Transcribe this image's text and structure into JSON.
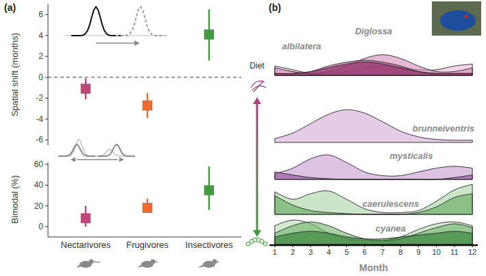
{
  "chart_data": [
    {
      "type": "dot_error",
      "panel": "(a)",
      "y_label": "Spatial shift (months)",
      "categories": [
        "Nectarivores",
        "Frugivores",
        "Insectivores"
      ],
      "values": [
        -1.1,
        -2.7,
        4.1
      ],
      "ci_low": [
        -2.1,
        -3.9,
        1.6
      ],
      "ci_high": [
        -0.1,
        -1.5,
        6.5
      ],
      "colors": [
        "#c2467a",
        "#f26b2e",
        "#3f9c3f"
      ],
      "marker": "square",
      "ylim": [
        -6.5,
        7
      ],
      "yticks": [
        -6,
        -4,
        -2,
        0,
        2,
        4,
        6
      ],
      "reference_line": 0
    },
    {
      "type": "dot_error",
      "y_label": "Bimodal (%)",
      "categories": [
        "Nectarivores",
        "Frugivores",
        "Insectivores"
      ],
      "values": [
        8,
        18,
        35
      ],
      "ci_low": [
        0,
        13,
        16
      ],
      "ci_high": [
        20,
        27,
        58
      ],
      "colors": [
        "#c2467a",
        "#f26b2e",
        "#3f9c3f"
      ],
      "marker": "square",
      "ylim": [
        -10,
        62
      ],
      "yticks": [
        0,
        20,
        40,
        60
      ]
    },
    {
      "type": "ridgeline",
      "panel": "(b)",
      "title": "Diglossa",
      "x_label": "Month",
      "annotation": "Diet",
      "x": [
        1,
        2,
        3,
        4,
        5,
        6,
        7,
        8,
        9,
        10,
        11,
        12
      ],
      "xlim": [
        0.7,
        12.3
      ],
      "xticks": [
        1,
        2,
        3,
        4,
        5,
        6,
        7,
        8,
        9,
        10,
        11,
        12
      ],
      "ylim": [
        0,
        1
      ],
      "groups": [
        {
          "name": "albilatera",
          "series": [
            {
              "color": "#e8b8d4",
              "values": [
                0.25,
                0.15,
                0.05,
                0.05,
                0.1,
                0.2,
                0.25,
                0.2,
                0.15,
                0.15,
                0.25,
                0.3
              ]
            },
            {
              "color": "#d48ab5",
              "values": [
                0.2,
                0.1,
                0.05,
                0.1,
                0.25,
                0.45,
                0.55,
                0.45,
                0.25,
                0.1,
                0.1,
                0.2
              ]
            },
            {
              "color": "#b0518a",
              "values": [
                0.05,
                0.05,
                0.1,
                0.25,
                0.35,
                0.4,
                0.35,
                0.25,
                0.1,
                0.05,
                0.05,
                0.05
              ]
            },
            {
              "color": "#8a2d66",
              "values": [
                0.05,
                0.05,
                0.1,
                0.2,
                0.3,
                0.35,
                0.3,
                0.2,
                0.1,
                0.05,
                0.05,
                0.05
              ]
            }
          ]
        },
        {
          "name": "brunneiventris",
          "series": [
            {
              "color": "#d3a9d6",
              "values": [
                0.1,
                0.25,
                0.5,
                0.75,
                0.87,
                0.78,
                0.55,
                0.3,
                0.15,
                0.08,
                0.06,
                0.06
              ]
            }
          ]
        },
        {
          "name": "mysticalis",
          "series": [
            {
              "color": "#c79ad0",
              "values": [
                0.15,
                0.3,
                0.55,
                0.65,
                0.45,
                0.2,
                0.1,
                0.1,
                0.2,
                0.3,
                0.35,
                0.3
              ]
            },
            {
              "color": "#8a4a9a",
              "values": [
                0.2,
                0.12,
                0.05,
                0.02,
                0,
                0,
                0,
                0,
                0,
                0,
                0.05,
                0.12
              ]
            }
          ]
        },
        {
          "name": "caerulescens",
          "series": [
            {
              "color": "#a8d3a4",
              "values": [
                0.6,
                0.4,
                0.55,
                0.62,
                0.4,
                0.15,
                0.05,
                0.05,
                0.1,
                0.35,
                0.65,
                0.8
              ]
            },
            {
              "color": "#5fa85c",
              "values": [
                0.5,
                0.25,
                0.1,
                0.05,
                0.02,
                0,
                0,
                0,
                0.05,
                0.2,
                0.45,
                0.55
              ]
            }
          ]
        },
        {
          "name": "cyanea",
          "series": [
            {
              "color": "#b5dcb0",
              "values": [
                0.5,
                0.65,
                0.55,
                0.3,
                0.15,
                0.1,
                0.1,
                0.2,
                0.4,
                0.55,
                0.6,
                0.5
              ]
            },
            {
              "color": "#6fb26a",
              "values": [
                0.3,
                0.5,
                0.6,
                0.5,
                0.3,
                0.15,
                0.1,
                0.15,
                0.3,
                0.45,
                0.55,
                0.45
              ]
            },
            {
              "color": "#2e7d32",
              "values": [
                0.2,
                0.3,
                0.35,
                0.3,
                0.2,
                0.15,
                0.15,
                0.2,
                0.25,
                0.3,
                0.35,
                0.3
              ]
            }
          ]
        }
      ]
    }
  ]
}
